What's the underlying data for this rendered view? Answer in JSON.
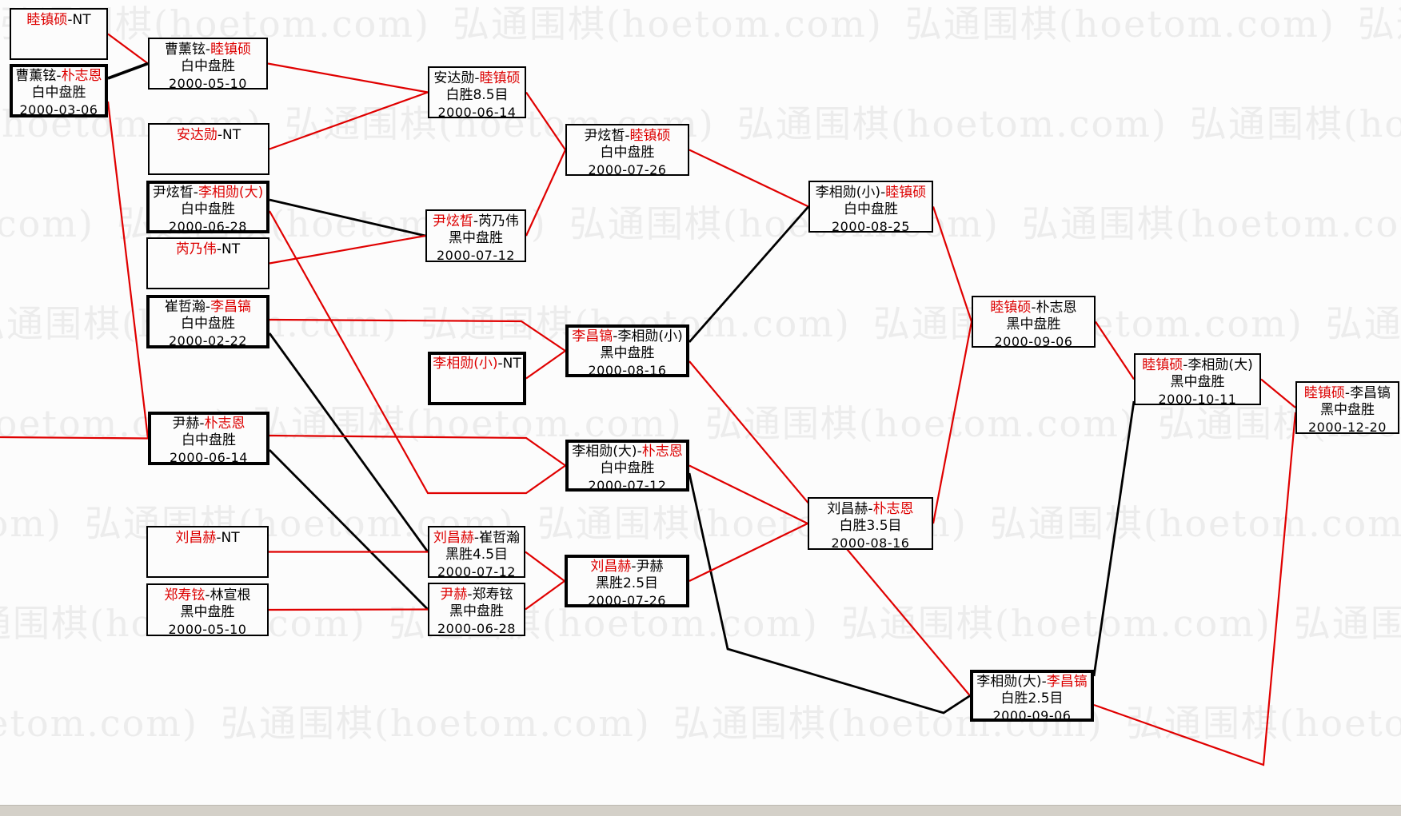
{
  "separator": "-",
  "watermark": {
    "text": "弘通围棋(hoetom.com)"
  },
  "colors": {
    "red": "#dd0000",
    "black": "#000000",
    "line_red": "#e00000",
    "line_black": "#000000",
    "watermark": "#ececec",
    "bottom_bar": "#d4d0c8"
  },
  "matches": [
    {
      "id": "A1",
      "p1": "睦镇硕",
      "p1_red": true,
      "p2": "NT",
      "p2_red": false,
      "result": "",
      "date": "",
      "bold": false
    },
    {
      "id": "A2",
      "p1": "曹薰铉",
      "p1_red": false,
      "p2": "朴志恩",
      "p2_red": true,
      "result": "白中盘胜",
      "date": "2000-03-06",
      "bold": true
    },
    {
      "id": "B1",
      "p1": "曹薰铉",
      "p1_red": false,
      "p2": "睦镇硕",
      "p2_red": true,
      "result": "白中盘胜",
      "date": "2000-05-10",
      "bold": false
    },
    {
      "id": "B2",
      "p1": "安达勋",
      "p1_red": true,
      "p2": "NT",
      "p2_red": false,
      "result": "",
      "date": "",
      "bold": false
    },
    {
      "id": "B3",
      "p1": "尹炫晳",
      "p1_red": false,
      "p2": "李相勋(大)",
      "p2_red": true,
      "result": "白中盘胜",
      "date": "2000-06-28",
      "bold": true
    },
    {
      "id": "B4",
      "p1": "芮乃伟",
      "p1_red": true,
      "p2": "NT",
      "p2_red": false,
      "result": "",
      "date": "",
      "bold": false
    },
    {
      "id": "B5",
      "p1": "崔哲瀚",
      "p1_red": false,
      "p2": "李昌镐",
      "p2_red": true,
      "result": "白中盘胜",
      "date": "2000-02-22",
      "bold": true
    },
    {
      "id": "B6",
      "p1": "尹赫",
      "p1_red": false,
      "p2": "朴志恩",
      "p2_red": true,
      "result": "白中盘胜",
      "date": "2000-06-14",
      "bold": true
    },
    {
      "id": "B7",
      "p1": "刘昌赫",
      "p1_red": true,
      "p2": "NT",
      "p2_red": false,
      "result": "",
      "date": "",
      "bold": false
    },
    {
      "id": "B8",
      "p1": "郑寿铉",
      "p1_red": true,
      "p2": "林宣根",
      "p2_red": false,
      "result": "黑中盘胜",
      "date": "2000-05-10",
      "bold": false
    },
    {
      "id": "C1",
      "p1": "安达勋",
      "p1_red": false,
      "p2": "睦镇硕",
      "p2_red": true,
      "result": "白胜8.5目",
      "date": "2000-06-14",
      "bold": false
    },
    {
      "id": "C2",
      "p1": "尹炫晳",
      "p1_red": true,
      "p2": "芮乃伟",
      "p2_red": false,
      "result": "黑中盘胜",
      "date": "2000-07-12",
      "bold": false
    },
    {
      "id": "C3",
      "p1": "李相勋(小)",
      "p1_red": true,
      "p2": "NT",
      "p2_red": false,
      "result": "",
      "date": "",
      "bold": true
    },
    {
      "id": "C4",
      "p1": "刘昌赫",
      "p1_red": true,
      "p2": "崔哲瀚",
      "p2_red": false,
      "result": "黑胜4.5目",
      "date": "2000-07-12",
      "bold": false
    },
    {
      "id": "C5",
      "p1": "尹赫",
      "p1_red": true,
      "p2": "郑寿铉",
      "p2_red": false,
      "result": "黑中盘胜",
      "date": "2000-06-28",
      "bold": false
    },
    {
      "id": "D1",
      "p1": "尹炫晳",
      "p1_red": false,
      "p2": "睦镇硕",
      "p2_red": true,
      "result": "白中盘胜",
      "date": "2000-07-26",
      "bold": false
    },
    {
      "id": "D2",
      "p1": "李昌镐",
      "p1_red": true,
      "p2": "李相勋(小)",
      "p2_red": false,
      "result": "黑中盘胜",
      "date": "2000-08-16",
      "bold": true
    },
    {
      "id": "D3",
      "p1": "李相勋(大)",
      "p1_red": false,
      "p2": "朴志恩",
      "p2_red": true,
      "result": "白中盘胜",
      "date": "2000-07-12",
      "bold": true
    },
    {
      "id": "D4",
      "p1": "刘昌赫",
      "p1_red": true,
      "p2": "尹赫",
      "p2_red": false,
      "result": "黑胜2.5目",
      "date": "2000-07-26",
      "bold": true
    },
    {
      "id": "E1",
      "p1": "李相勋(小)",
      "p1_red": false,
      "p2": "睦镇硕",
      "p2_red": true,
      "result": "白中盘胜",
      "date": "2000-08-25",
      "bold": false
    },
    {
      "id": "E2",
      "p1": "刘昌赫",
      "p1_red": false,
      "p2": "朴志恩",
      "p2_red": true,
      "result": "白胜3.5目",
      "date": "2000-08-16",
      "bold": false
    },
    {
      "id": "F1",
      "p1": "睦镇硕",
      "p1_red": true,
      "p2": "朴志恩",
      "p2_red": false,
      "result": "黑中盘胜",
      "date": "2000-09-06",
      "bold": false
    },
    {
      "id": "F2",
      "p1": "李相勋(大)",
      "p1_red": false,
      "p2": "李昌镐",
      "p2_red": true,
      "result": "白胜2.5目",
      "date": "2000-09-06",
      "bold": true
    },
    {
      "id": "G1",
      "p1": "睦镇硕",
      "p1_red": true,
      "p2": "李相勋(大)",
      "p2_red": false,
      "result": "黑中盘胜",
      "date": "2000-10-11",
      "bold": false
    },
    {
      "id": "H1",
      "p1": "睦镇硕",
      "p1_red": true,
      "p2": "李昌镐",
      "p2_red": false,
      "result": "黑中盘胜",
      "date": "2000-12-20",
      "bold": false
    }
  ],
  "edges": [
    {
      "from": "A1",
      "to": "B1",
      "color": "red"
    },
    {
      "from": "A2",
      "to": "B1",
      "color": "black"
    },
    {
      "from": "A2",
      "to": "B6",
      "color": "red"
    },
    {
      "from": "OFFL",
      "to": "B6",
      "color": "red"
    },
    {
      "from": "B1",
      "to": "C1",
      "color": "red"
    },
    {
      "from": "B2",
      "to": "C1",
      "color": "red"
    },
    {
      "from": "B3",
      "to": "C2",
      "color": "black"
    },
    {
      "from": "B4",
      "to": "C2",
      "color": "red"
    },
    {
      "from": "B3",
      "to": "D3",
      "color": "red"
    },
    {
      "from": "B5",
      "to": "D2",
      "color": "red"
    },
    {
      "from": "B5",
      "to": "C4",
      "color": "black"
    },
    {
      "from": "B6",
      "to": "C5",
      "color": "black"
    },
    {
      "from": "B6",
      "to": "D3",
      "color": "red"
    },
    {
      "from": "B7",
      "to": "C4",
      "color": "red"
    },
    {
      "from": "B8",
      "to": "C5",
      "color": "red"
    },
    {
      "from": "C1",
      "to": "D1",
      "color": "red"
    },
    {
      "from": "C2",
      "to": "D1",
      "color": "red"
    },
    {
      "from": "C3",
      "to": "D2",
      "color": "red"
    },
    {
      "from": "C4",
      "to": "D4",
      "color": "red"
    },
    {
      "from": "C5",
      "to": "D4",
      "color": "red"
    },
    {
      "from": "D1",
      "to": "E1",
      "color": "red"
    },
    {
      "from": "D2",
      "to": "E1",
      "color": "black"
    },
    {
      "from": "D2",
      "to": "F2",
      "color": "red"
    },
    {
      "from": "D3",
      "to": "E2",
      "color": "red"
    },
    {
      "from": "D3",
      "to": "F2",
      "color": "black"
    },
    {
      "from": "D4",
      "to": "E2",
      "color": "red"
    },
    {
      "from": "E1",
      "to": "F1",
      "color": "red"
    },
    {
      "from": "E2",
      "to": "F1",
      "color": "red"
    },
    {
      "from": "F1",
      "to": "G1",
      "color": "red"
    },
    {
      "from": "F2",
      "to": "G1",
      "color": "black"
    },
    {
      "from": "F2",
      "to": "H1",
      "color": "red"
    },
    {
      "from": "G1",
      "to": "H1",
      "color": "red"
    }
  ]
}
